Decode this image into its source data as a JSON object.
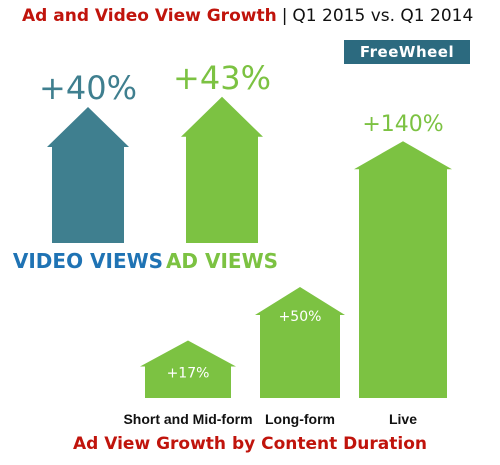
{
  "title": {
    "main": "Ad and Video View Growth",
    "separator": "|",
    "subtitle": "Q1 2015 vs. Q1 2014"
  },
  "logo_text": "FreeWheel",
  "colors": {
    "title_red": "#c0140c",
    "video_teal": "#3f7f8f",
    "video_label_blue": "#1f73b4",
    "ad_green": "#7cc242",
    "ad_green_dark": "#5fa32e"
  },
  "chart_data": [
    {
      "type": "bar",
      "categories": [
        "VIDEO VIEWS",
        "AD VIEWS"
      ],
      "values": [
        40,
        43
      ],
      "data_labels": [
        "+40%",
        "+43%"
      ],
      "title": ""
    },
    {
      "type": "bar",
      "title": "Ad View Growth by Content Duration",
      "categories": [
        "Short and Mid-form",
        "Long-form",
        "Live"
      ],
      "values": [
        17,
        50,
        140
      ],
      "data_labels": [
        "+17%",
        "+50%",
        "+140%"
      ]
    }
  ]
}
